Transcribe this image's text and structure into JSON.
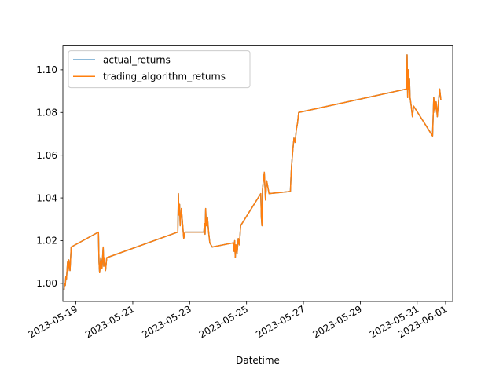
{
  "chart_data": {
    "type": "line",
    "title": "",
    "xlabel": "Datetime",
    "ylabel": "",
    "x_axis_type": "date",
    "xlim": [
      "2023-05-18T13:00",
      "2023-06-01T06:00"
    ],
    "ylim": [
      0.9915,
      1.1115
    ],
    "x_ticks": [
      "2023-05-19",
      "2023-05-21",
      "2023-05-23",
      "2023-05-25",
      "2023-05-27",
      "2023-05-29",
      "2023-05-31",
      "2023-06-01"
    ],
    "y_ticks": [
      1.0,
      1.02,
      1.04,
      1.06,
      1.08,
      1.1
    ],
    "y_tick_labels": [
      "1.00",
      "1.02",
      "1.04",
      "1.06",
      "1.08",
      "1.10"
    ],
    "grid": false,
    "legend_position": "top-left",
    "series": [
      {
        "name": "actual_returns",
        "color": "#1f77b4",
        "points": [
          [
            "2023-05-18T14:00",
            0.997
          ],
          [
            "2023-05-18T14:30",
            1.0
          ],
          [
            "2023-05-18T15:00",
            0.999
          ],
          [
            "2023-05-18T15:30",
            1.003
          ],
          [
            "2023-05-18T16:00",
            1.002
          ],
          [
            "2023-05-18T17:00",
            1.01
          ],
          [
            "2023-05-18T17:30",
            1.006
          ],
          [
            "2023-05-18T18:00",
            1.011
          ],
          [
            "2023-05-18T19:00",
            1.006
          ],
          [
            "2023-05-18T20:00",
            1.017
          ],
          [
            "2023-05-19T19:00",
            1.024
          ],
          [
            "2023-05-19T19:30",
            1.01
          ],
          [
            "2023-05-19T20:00",
            1.005
          ],
          [
            "2023-05-19T21:00",
            1.012
          ],
          [
            "2023-05-19T22:00",
            1.007
          ],
          [
            "2023-05-19T23:00",
            1.017
          ],
          [
            "2023-05-19T23:30",
            1.008
          ],
          [
            "2023-05-20T00:00",
            1.012
          ],
          [
            "2023-05-20T01:00",
            1.006
          ],
          [
            "2023-05-20T02:00",
            1.012
          ],
          [
            "2023-05-22T14:00",
            1.024
          ],
          [
            "2023-05-22T14:30",
            1.042
          ],
          [
            "2023-05-22T15:00",
            1.032
          ],
          [
            "2023-05-22T15:30",
            1.037
          ],
          [
            "2023-05-22T16:00",
            1.027
          ],
          [
            "2023-05-22T17:00",
            1.035
          ],
          [
            "2023-05-22T18:00",
            1.028
          ],
          [
            "2023-05-22T19:00",
            1.021
          ],
          [
            "2023-05-22T20:00",
            1.024
          ],
          [
            "2023-05-23T12:00",
            1.024
          ],
          [
            "2023-05-23T12:30",
            1.028
          ],
          [
            "2023-05-23T13:00",
            1.023
          ],
          [
            "2023-05-23T13:30",
            1.035
          ],
          [
            "2023-05-23T14:00",
            1.027
          ],
          [
            "2023-05-23T15:00",
            1.031
          ],
          [
            "2023-05-23T16:00",
            1.024
          ],
          [
            "2023-05-23T17:00",
            1.019
          ],
          [
            "2023-05-23T19:00",
            1.017
          ],
          [
            "2023-05-24T13:00",
            1.019
          ],
          [
            "2023-05-24T13:30",
            1.015
          ],
          [
            "2023-05-24T14:00",
            1.02
          ],
          [
            "2023-05-24T14:30",
            1.012
          ],
          [
            "2023-05-24T15:00",
            1.018
          ],
          [
            "2023-05-24T16:00",
            1.014
          ],
          [
            "2023-05-24T17:00",
            1.021
          ],
          [
            "2023-05-24T18:00",
            1.018
          ],
          [
            "2023-05-24T19:00",
            1.027
          ],
          [
            "2023-05-25T12:00",
            1.042
          ],
          [
            "2023-05-25T12:30",
            1.031
          ],
          [
            "2023-05-25T13:00",
            1.027
          ],
          [
            "2023-05-25T13:30",
            1.044
          ],
          [
            "2023-05-25T14:00",
            1.047
          ],
          [
            "2023-05-25T15:00",
            1.052
          ],
          [
            "2023-05-25T16:00",
            1.039
          ],
          [
            "2023-05-25T17:00",
            1.048
          ],
          [
            "2023-05-25T19:00",
            1.042
          ],
          [
            "2023-05-26T13:00",
            1.043
          ],
          [
            "2023-05-26T13:30",
            1.05
          ],
          [
            "2023-05-26T14:00",
            1.055
          ],
          [
            "2023-05-26T15:00",
            1.062
          ],
          [
            "2023-05-26T16:00",
            1.068
          ],
          [
            "2023-05-26T17:00",
            1.066
          ],
          [
            "2023-05-26T18:00",
            1.072
          ],
          [
            "2023-05-26T19:00",
            1.075
          ],
          [
            "2023-05-26T20:00",
            1.08
          ],
          [
            "2023-05-30T15:00",
            1.091
          ],
          [
            "2023-05-30T15:30",
            1.107
          ],
          [
            "2023-05-30T16:00",
            1.087
          ],
          [
            "2023-05-30T16:30",
            1.1
          ],
          [
            "2023-05-30T17:00",
            1.091
          ],
          [
            "2023-05-30T17:30",
            1.096
          ],
          [
            "2023-05-30T18:00",
            1.087
          ],
          [
            "2023-05-30T19:00",
            1.083
          ],
          [
            "2023-05-30T20:00",
            1.078
          ],
          [
            "2023-05-30T21:00",
            1.083
          ],
          [
            "2023-05-31T13:00",
            1.069
          ],
          [
            "2023-05-31T14:00",
            1.087
          ],
          [
            "2023-05-31T15:00",
            1.08
          ],
          [
            "2023-05-31T16:00",
            1.085
          ],
          [
            "2023-05-31T17:00",
            1.078
          ],
          [
            "2023-05-31T18:00",
            1.085
          ],
          [
            "2023-05-31T19:00",
            1.091
          ],
          [
            "2023-05-31T20:00",
            1.086
          ]
        ]
      },
      {
        "name": "trading_algorithm_returns",
        "color": "#ff7f0e",
        "points": [
          [
            "2023-05-18T14:00",
            0.997
          ],
          [
            "2023-05-18T14:30",
            1.0
          ],
          [
            "2023-05-18T15:00",
            0.999
          ],
          [
            "2023-05-18T15:30",
            1.003
          ],
          [
            "2023-05-18T16:00",
            1.002
          ],
          [
            "2023-05-18T17:00",
            1.01
          ],
          [
            "2023-05-18T17:30",
            1.006
          ],
          [
            "2023-05-18T18:00",
            1.011
          ],
          [
            "2023-05-18T19:00",
            1.006
          ],
          [
            "2023-05-18T20:00",
            1.017
          ],
          [
            "2023-05-19T19:00",
            1.024
          ],
          [
            "2023-05-19T19:30",
            1.01
          ],
          [
            "2023-05-19T20:00",
            1.005
          ],
          [
            "2023-05-19T21:00",
            1.012
          ],
          [
            "2023-05-19T22:00",
            1.007
          ],
          [
            "2023-05-19T23:00",
            1.017
          ],
          [
            "2023-05-19T23:30",
            1.008
          ],
          [
            "2023-05-20T00:00",
            1.012
          ],
          [
            "2023-05-20T01:00",
            1.006
          ],
          [
            "2023-05-20T02:00",
            1.012
          ],
          [
            "2023-05-22T14:00",
            1.024
          ],
          [
            "2023-05-22T14:30",
            1.042
          ],
          [
            "2023-05-22T15:00",
            1.032
          ],
          [
            "2023-05-22T15:30",
            1.037
          ],
          [
            "2023-05-22T16:00",
            1.027
          ],
          [
            "2023-05-22T17:00",
            1.035
          ],
          [
            "2023-05-22T18:00",
            1.028
          ],
          [
            "2023-05-22T19:00",
            1.021
          ],
          [
            "2023-05-22T20:00",
            1.024
          ],
          [
            "2023-05-23T12:00",
            1.024
          ],
          [
            "2023-05-23T12:30",
            1.028
          ],
          [
            "2023-05-23T13:00",
            1.023
          ],
          [
            "2023-05-23T13:30",
            1.035
          ],
          [
            "2023-05-23T14:00",
            1.027
          ],
          [
            "2023-05-23T15:00",
            1.031
          ],
          [
            "2023-05-23T16:00",
            1.024
          ],
          [
            "2023-05-23T17:00",
            1.019
          ],
          [
            "2023-05-23T19:00",
            1.017
          ],
          [
            "2023-05-24T13:00",
            1.019
          ],
          [
            "2023-05-24T13:30",
            1.015
          ],
          [
            "2023-05-24T14:00",
            1.02
          ],
          [
            "2023-05-24T14:30",
            1.012
          ],
          [
            "2023-05-24T15:00",
            1.018
          ],
          [
            "2023-05-24T16:00",
            1.014
          ],
          [
            "2023-05-24T17:00",
            1.021
          ],
          [
            "2023-05-24T18:00",
            1.018
          ],
          [
            "2023-05-24T19:00",
            1.027
          ],
          [
            "2023-05-25T12:00",
            1.042
          ],
          [
            "2023-05-25T12:30",
            1.031
          ],
          [
            "2023-05-25T13:00",
            1.027
          ],
          [
            "2023-05-25T13:30",
            1.044
          ],
          [
            "2023-05-25T14:00",
            1.047
          ],
          [
            "2023-05-25T15:00",
            1.052
          ],
          [
            "2023-05-25T16:00",
            1.039
          ],
          [
            "2023-05-25T17:00",
            1.048
          ],
          [
            "2023-05-25T19:00",
            1.042
          ],
          [
            "2023-05-26T13:00",
            1.043
          ],
          [
            "2023-05-26T13:30",
            1.05
          ],
          [
            "2023-05-26T14:00",
            1.055
          ],
          [
            "2023-05-26T15:00",
            1.062
          ],
          [
            "2023-05-26T16:00",
            1.068
          ],
          [
            "2023-05-26T17:00",
            1.066
          ],
          [
            "2023-05-26T18:00",
            1.072
          ],
          [
            "2023-05-26T19:00",
            1.075
          ],
          [
            "2023-05-26T20:00",
            1.08
          ],
          [
            "2023-05-30T15:00",
            1.091
          ],
          [
            "2023-05-30T15:30",
            1.107
          ],
          [
            "2023-05-30T16:00",
            1.087
          ],
          [
            "2023-05-30T16:30",
            1.1
          ],
          [
            "2023-05-30T17:00",
            1.091
          ],
          [
            "2023-05-30T17:30",
            1.096
          ],
          [
            "2023-05-30T18:00",
            1.087
          ],
          [
            "2023-05-30T19:00",
            1.083
          ],
          [
            "2023-05-30T20:00",
            1.078
          ],
          [
            "2023-05-30T21:00",
            1.083
          ],
          [
            "2023-05-31T13:00",
            1.069
          ],
          [
            "2023-05-31T14:00",
            1.087
          ],
          [
            "2023-05-31T15:00",
            1.08
          ],
          [
            "2023-05-31T16:00",
            1.085
          ],
          [
            "2023-05-31T17:00",
            1.078
          ],
          [
            "2023-05-31T18:00",
            1.085
          ],
          [
            "2023-05-31T19:00",
            1.091
          ],
          [
            "2023-05-31T20:00",
            1.086
          ]
        ]
      }
    ]
  }
}
